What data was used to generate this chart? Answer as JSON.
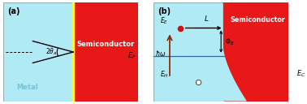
{
  "fig_width": 3.78,
  "fig_height": 1.28,
  "dpi": 100,
  "metal_color": "#b0eaf5",
  "semiconductor_color": "#e81818",
  "yellow_line_color": "#ffff00",
  "panel_a_label": "(a)",
  "panel_b_label": "(b)",
  "semiconductor_label": "Semiconductor",
  "metal_label": "Metal",
  "EF_label": "E_F",
  "EC_label": "E_C"
}
